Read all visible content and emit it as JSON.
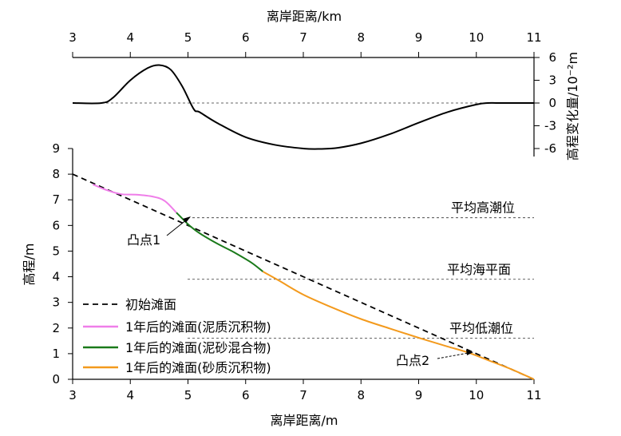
{
  "chart_data": [
    {
      "type": "line",
      "name": "elevation-change",
      "xlabel": "离岸距离/km",
      "ylabel": "高程变化量/10⁻²m",
      "xlim": [
        3,
        11
      ],
      "ylim": [
        -6,
        6
      ],
      "xticks": [
        3,
        4,
        5,
        6,
        7,
        8,
        9,
        10,
        11
      ],
      "yticks": [
        6,
        3,
        0,
        -3,
        -6
      ],
      "zero_line": true,
      "series": [
        {
          "name": "高程变化量",
          "x": [
            3.0,
            3.5,
            3.7,
            4.0,
            4.3,
            4.5,
            4.7,
            4.9,
            5.1,
            5.2,
            5.5,
            6.0,
            6.5,
            7.0,
            7.3,
            7.6,
            8.0,
            8.5,
            9.0,
            9.5,
            10.0,
            10.2,
            10.4,
            11.0
          ],
          "values": [
            0,
            0,
            0.7,
            3.0,
            4.6,
            5.0,
            4.4,
            2.2,
            -0.8,
            -1.2,
            -2.6,
            -4.5,
            -5.5,
            -6.0,
            -6.05,
            -5.9,
            -5.3,
            -4.1,
            -2.6,
            -1.2,
            -0.2,
            0,
            0,
            0
          ]
        }
      ]
    },
    {
      "type": "line",
      "name": "beach-profile",
      "xlabel": "离岸距离/m",
      "ylabel": "高程/m",
      "xlim": [
        3,
        11
      ],
      "ylim": [
        0,
        9
      ],
      "xticks": [
        3,
        4,
        5,
        6,
        7,
        8,
        9,
        10,
        11
      ],
      "yticks": [
        0,
        1,
        2,
        3,
        4,
        5,
        6,
        7,
        8,
        9
      ],
      "reference_lines": [
        {
          "label": "平均高潮位",
          "y": 6.3
        },
        {
          "label": "平均海平面",
          "y": 3.9
        },
        {
          "label": "平均低潮位",
          "y": 1.6
        }
      ],
      "annotations": [
        {
          "label": "凸点1",
          "x": 4.8,
          "y": 6.4
        },
        {
          "label": "凸点2",
          "x": 9.85,
          "y": 1.05
        }
      ],
      "legend": "bottom-left",
      "series": [
        {
          "name": "初始滩面",
          "color": "#000000",
          "dash": true,
          "x": [
            3,
            11
          ],
          "values": [
            8.0,
            0
          ]
        },
        {
          "name": "1年后的滩面(泥质沉积物)",
          "color": "#ef7ee9",
          "x": [
            3.35,
            3.6,
            3.85,
            4.1,
            4.4,
            4.6,
            4.8
          ],
          "values": [
            7.6,
            7.37,
            7.22,
            7.2,
            7.12,
            6.95,
            6.5
          ]
        },
        {
          "name": "1年后的滩面(泥砂混合物)",
          "color": "#1a7a1a",
          "x": [
            4.8,
            5.0,
            5.2,
            5.5,
            5.8,
            6.1,
            6.3
          ],
          "values": [
            6.5,
            6.05,
            5.7,
            5.3,
            4.95,
            4.55,
            4.2
          ]
        },
        {
          "name": "1年后的滩面(砂质沉积物)",
          "color": "#f39a1d",
          "x": [
            6.3,
            6.6,
            7.0,
            7.5,
            8.0,
            8.5,
            9.0,
            9.5,
            9.85,
            10.2,
            10.6,
            11.0
          ],
          "values": [
            4.2,
            3.82,
            3.3,
            2.8,
            2.35,
            1.98,
            1.62,
            1.28,
            1.05,
            0.75,
            0.4,
            0
          ]
        }
      ]
    }
  ]
}
